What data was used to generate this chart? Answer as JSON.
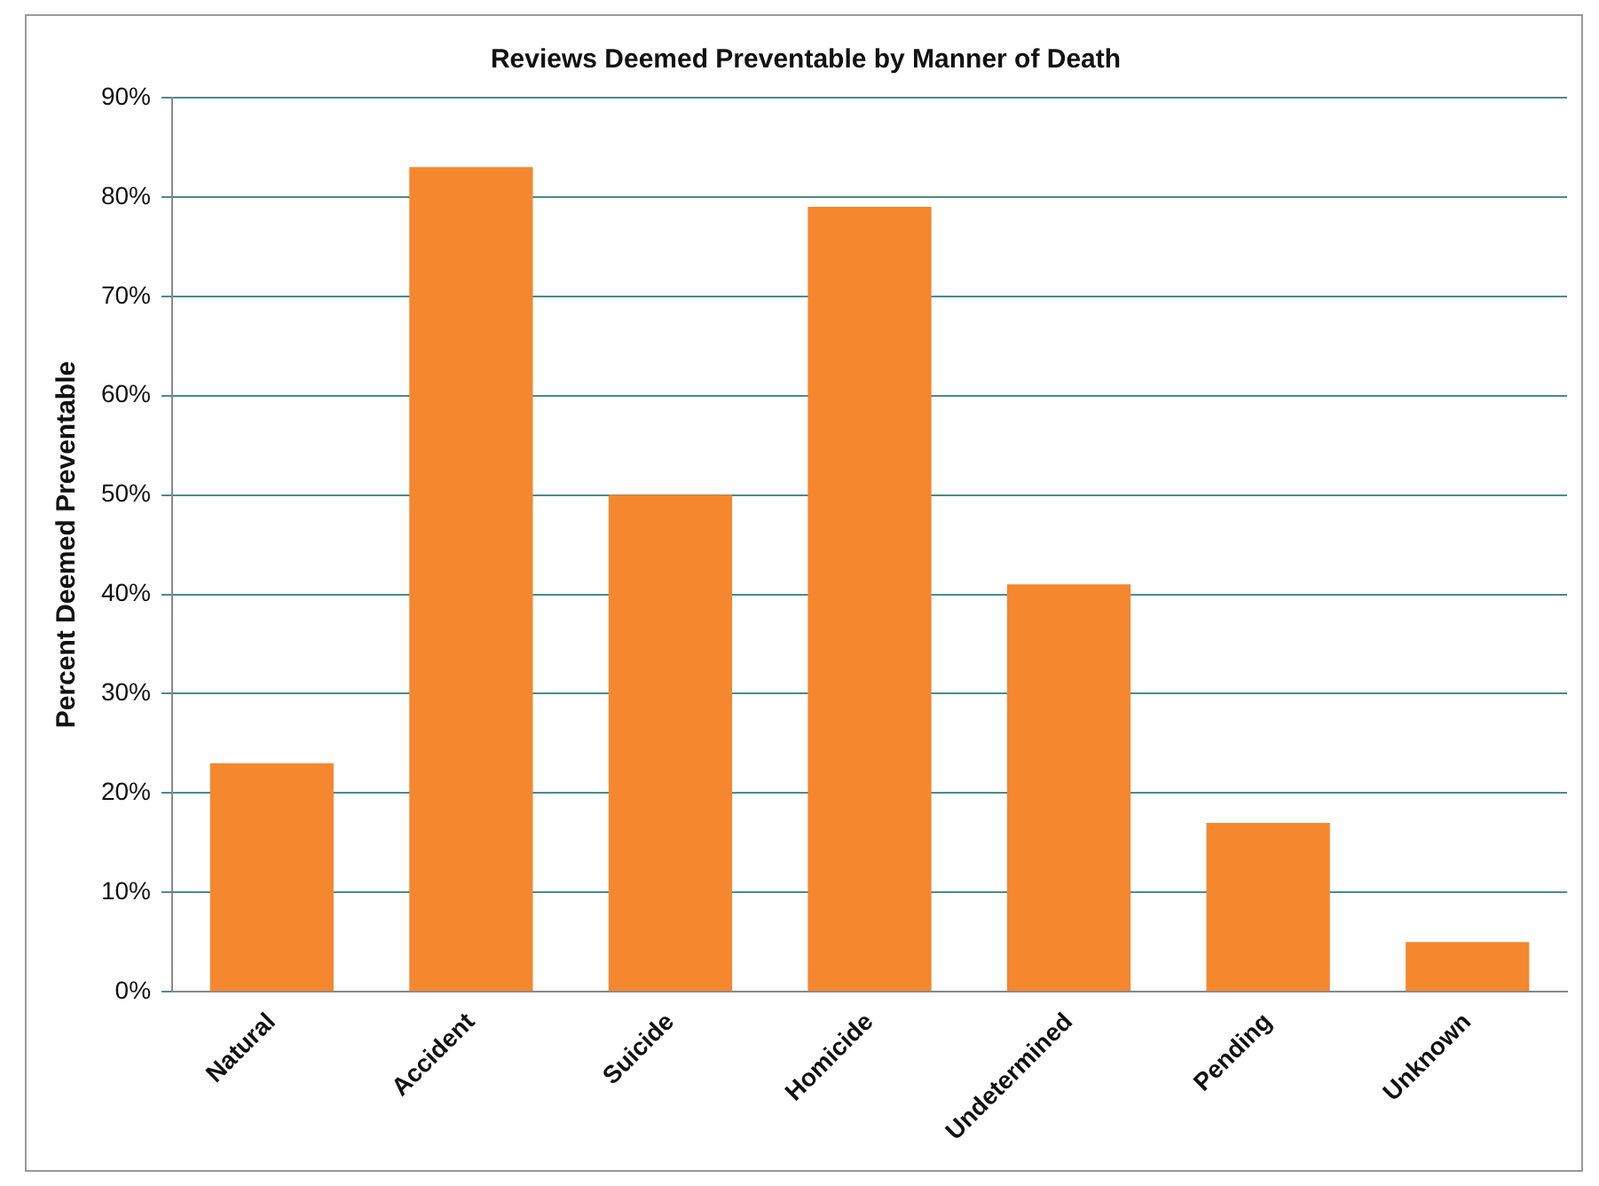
{
  "chart_data": {
    "type": "bar",
    "title": "Reviews Deemed Preventable by Manner of Death",
    "ylabel": "Percent Deemed Preventable",
    "categories": [
      "Natural",
      "Accident",
      "Suicide",
      "Homicide",
      "Undetermined",
      "Pending",
      "Unknown"
    ],
    "values": [
      23,
      83,
      50,
      79,
      41,
      17,
      5
    ],
    "color": "#f5872f",
    "ylim": [
      0,
      90
    ],
    "yticks": [
      {
        "value": 0,
        "label": "0%"
      },
      {
        "value": 10,
        "label": "10%"
      },
      {
        "value": 20,
        "label": "20%"
      },
      {
        "value": 30,
        "label": "30%"
      },
      {
        "value": 40,
        "label": "40%"
      },
      {
        "value": 50,
        "label": "50%"
      },
      {
        "value": 60,
        "label": "60%"
      },
      {
        "value": 70,
        "label": "70%"
      },
      {
        "value": 80,
        "label": "80%"
      },
      {
        "value": 90,
        "label": "90%"
      }
    ],
    "grid": "y",
    "legend": false
  }
}
